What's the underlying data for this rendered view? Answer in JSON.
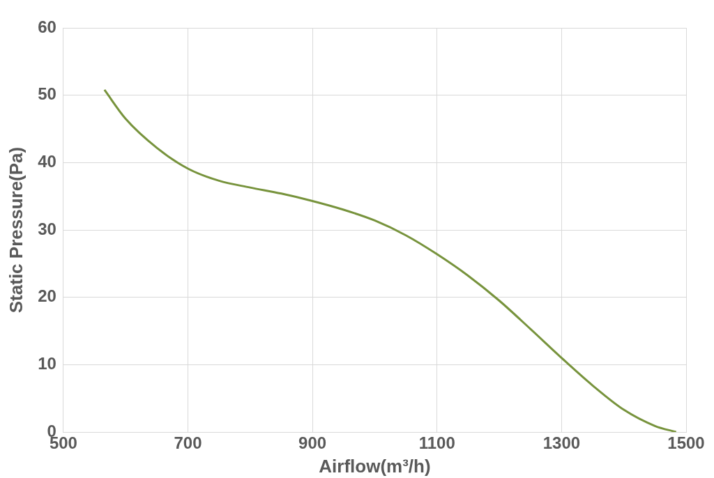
{
  "chart_data": {
    "type": "line",
    "xlabel": "Airflow(m³/h)",
    "ylabel": "Static Pressure(Pa)",
    "series": [
      {
        "color": "#77933c",
        "x": [
          566,
          600,
          650,
          700,
          750,
          800,
          850,
          900,
          950,
          1000,
          1050,
          1100,
          1150,
          1200,
          1250,
          1300,
          1350,
          1400,
          1450,
          1484
        ],
        "values": [
          50.8,
          46.5,
          42.2,
          39.1,
          37.3,
          36.3,
          35.4,
          34.3,
          33.0,
          31.4,
          29.2,
          26.4,
          23.2,
          19.5,
          15.3,
          11.0,
          6.9,
          3.3,
          0.9,
          0
        ]
      }
    ],
    "xlim": [
      500,
      1500
    ],
    "xticks": [
      500,
      700,
      900,
      1100,
      1300,
      1500
    ],
    "ylim": [
      0,
      60
    ],
    "yticks": [
      0,
      10,
      20,
      30,
      40,
      50,
      60
    ],
    "grid": true,
    "legend": false,
    "marker": "none",
    "line_style": "solid"
  }
}
